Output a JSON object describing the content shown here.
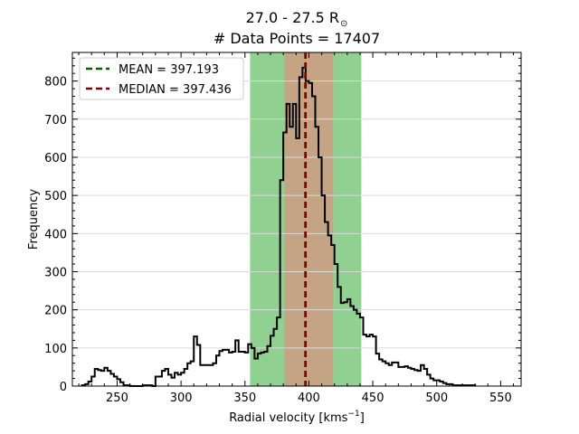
{
  "chart_data": {
    "type": "histogram",
    "title_line1": "27.0 - 27.5 R",
    "title_line1_symbol": "⊙",
    "title_line2": "# Data Points = 17407",
    "xlabel_main": "Radial velocity [kms",
    "xlabel_sup": "−1",
    "xlabel_end": "]",
    "ylabel": "Frequency",
    "xlim": [
      215,
      566
    ],
    "ylim": [
      0,
      875
    ],
    "xticks": [
      250,
      300,
      350,
      400,
      450,
      500,
      550
    ],
    "yticks": [
      0,
      100,
      200,
      300,
      400,
      500,
      600,
      700,
      800
    ],
    "grid": "horizontal",
    "legend_position": "top-left",
    "bin_width": 2.5,
    "bins_start": 222.5,
    "counts": [
      2,
      5,
      12,
      25,
      45,
      42,
      40,
      48,
      40,
      32,
      25,
      18,
      10,
      2,
      2,
      0,
      0,
      0,
      0,
      2,
      2,
      2,
      0,
      25,
      25,
      40,
      45,
      30,
      22,
      35,
      30,
      35,
      45,
      60,
      65,
      130,
      108,
      55,
      55,
      55,
      55,
      60,
      80,
      92,
      95,
      95,
      88,
      90,
      120,
      90,
      90,
      88,
      110,
      100,
      72,
      85,
      88,
      90,
      105,
      132,
      150,
      180,
      540,
      665,
      740,
      680,
      740,
      650,
      810,
      835,
      800,
      795,
      760,
      680,
      600,
      500,
      430,
      395,
      370,
      320,
      260,
      218,
      220,
      228,
      210,
      200,
      190,
      180,
      135,
      130,
      135,
      130,
      85,
      70,
      65,
      60,
      55,
      62,
      62,
      50,
      50,
      52,
      48,
      45,
      42,
      40,
      55,
      45,
      30,
      20,
      15,
      15,
      12,
      8,
      5,
      5,
      2,
      2,
      2,
      2,
      2,
      2,
      2
    ],
    "mean": {
      "value": 397.193,
      "label": "MEAN = 397.193",
      "color": "#006400"
    },
    "median": {
      "value": 397.436,
      "label": "MEDIAN = 397.436",
      "color": "#8b0000"
    },
    "band_outer": [
      354,
      441
    ],
    "band_inner": [
      381,
      419
    ],
    "band_outer_color": "#90d090",
    "band_inner_color": "#c4a484"
  }
}
